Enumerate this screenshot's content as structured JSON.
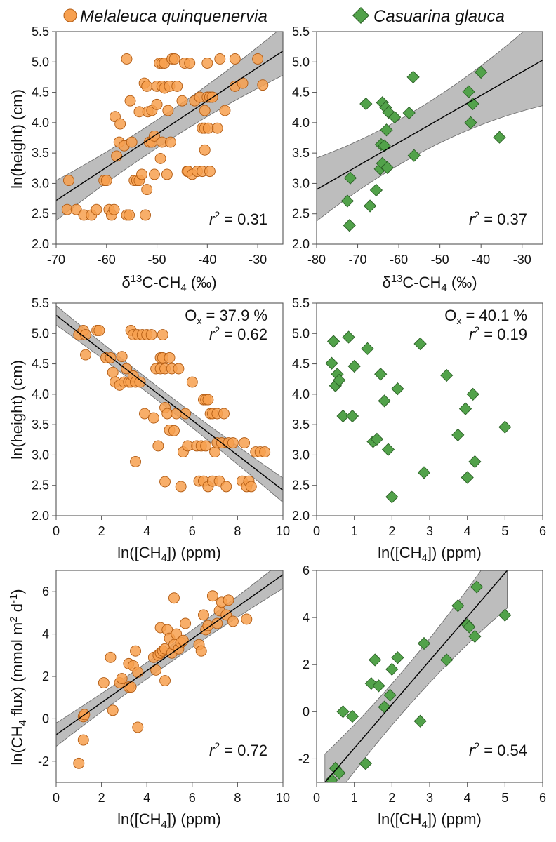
{
  "legend": [
    {
      "label": "Melaleuca quinquenervia",
      "marker": "circle",
      "color": "#f7a04f",
      "edge": "#b25b12"
    },
    {
      "label": "Casuarina glauca",
      "marker": "diamond",
      "color": "#52a24a",
      "edge": "#2a5f25"
    }
  ],
  "colors": {
    "band": "#bdbdbd",
    "fit_line": "#000000",
    "frame": "#555555"
  },
  "labels": {
    "y_height": "ln(height) (cm)",
    "y_flux": "ln(CH4 flux) (mmol m2 d-1)",
    "x_d13c": "δ13C-CH4 (‰)",
    "x_conc": "ln([CH4]) (ppm)"
  },
  "chart_data": [
    {
      "id": "A",
      "type": "scatter",
      "species": "Melaleuca quinquenervia",
      "marker": "circle",
      "xlim": [
        -70,
        -25
      ],
      "ylim": [
        2.0,
        5.5
      ],
      "xticks": [
        -70,
        -60,
        -50,
        -40,
        -30
      ],
      "yticks": [
        2.0,
        2.5,
        3.0,
        3.5,
        4.0,
        4.5,
        5.0,
        5.5
      ],
      "xlabel": "δ13C-CH4 (‰)",
      "ylabel": "ln(height) (cm)",
      "annotation": {
        "r2": "0.31",
        "ox": ""
      },
      "fit": {
        "x": [
          -70,
          -25
        ],
        "y": [
          2.72,
          5.18
        ],
        "band": [
          0.33,
          0.1,
          0.4
        ]
      },
      "points": [
        [
          -67.5,
          3.05
        ],
        [
          -67.8,
          2.57
        ],
        [
          -66,
          2.57
        ],
        [
          -64.5,
          2.48
        ],
        [
          -63,
          2.48
        ],
        [
          -62,
          2.57
        ],
        [
          -60.5,
          3.05
        ],
        [
          -60,
          3.05
        ],
        [
          -59.5,
          2.57
        ],
        [
          -59,
          2.48
        ],
        [
          -58.5,
          2.57
        ],
        [
          -58.3,
          4.1
        ],
        [
          -58,
          3.45
        ],
        [
          -57.5,
          3.68
        ],
        [
          -57.3,
          3.98
        ],
        [
          -56.5,
          3.62
        ],
        [
          -56,
          5.05
        ],
        [
          -56,
          2.48
        ],
        [
          -55.5,
          2.48
        ],
        [
          -55.3,
          4.36
        ],
        [
          -55,
          3.68
        ],
        [
          -54.5,
          3.05
        ],
        [
          -54,
          3.05
        ],
        [
          -53.5,
          4.18
        ],
        [
          -53.5,
          3.05
        ],
        [
          -53,
          3.15
        ],
        [
          -52.5,
          4.65
        ],
        [
          -52.3,
          2.48
        ],
        [
          -52,
          4.6
        ],
        [
          -52,
          2.9
        ],
        [
          -51.8,
          4.18
        ],
        [
          -51.5,
          3.68
        ],
        [
          -51,
          3.68
        ],
        [
          -51,
          4.2
        ],
        [
          -50.5,
          3.15
        ],
        [
          -50.5,
          3.78
        ],
        [
          -50,
          4.6
        ],
        [
          -50,
          4.3
        ],
        [
          -49.5,
          4.98
        ],
        [
          -49.3,
          3.41
        ],
        [
          -49,
          4.98
        ],
        [
          -49,
          4.6
        ],
        [
          -49,
          3.68
        ],
        [
          -48.5,
          4.98
        ],
        [
          -48.5,
          4.57
        ],
        [
          -48,
          3.15
        ],
        [
          -47.8,
          4.2
        ],
        [
          -47.5,
          4.6
        ],
        [
          -47.3,
          3.68
        ],
        [
          -47,
          5.05
        ],
        [
          -46.5,
          5.05
        ],
        [
          -46,
          4.6
        ],
        [
          -45,
          4.36
        ],
        [
          -44.5,
          4.98
        ],
        [
          -44,
          3.2
        ],
        [
          -43.8,
          3.2
        ],
        [
          -43.5,
          4.98
        ],
        [
          -43,
          3.15
        ],
        [
          -42.5,
          4.36
        ],
        [
          -42,
          3.2
        ],
        [
          -41.5,
          4.42
        ],
        [
          -41,
          3.2
        ],
        [
          -41,
          3.91
        ],
        [
          -40.5,
          3.91
        ],
        [
          -40.5,
          3.55
        ],
        [
          -40.5,
          4.2
        ],
        [
          -40,
          4.98
        ],
        [
          -40,
          4.42
        ],
        [
          -39.8,
          3.91
        ],
        [
          -39.5,
          3.2
        ],
        [
          -39.5,
          4.42
        ],
        [
          -39,
          4.42
        ],
        [
          -38,
          3.91
        ],
        [
          -37.5,
          5.05
        ],
        [
          -36.5,
          4.2
        ],
        [
          -34.5,
          4.6
        ],
        [
          -34.5,
          5.05
        ],
        [
          -33,
          4.65
        ],
        [
          -30,
          5.05
        ],
        [
          -29,
          4.62
        ]
      ]
    },
    {
      "id": "B",
      "type": "scatter",
      "species": "Casuarina glauca",
      "marker": "diamond",
      "xlim": [
        -80,
        -25
      ],
      "ylim": [
        2.0,
        5.5
      ],
      "xticks": [
        -80,
        -70,
        -60,
        -50,
        -40,
        -30
      ],
      "yticks": [
        2.0,
        2.5,
        3.0,
        3.5,
        4.0,
        4.5,
        5.0,
        5.5
      ],
      "xlabel": "δ13C-CH4 (‰)",
      "ylabel": "",
      "annotation": {
        "r2": "0.37",
        "ox": ""
      },
      "fit": {
        "x": [
          -80,
          -25
        ],
        "y": [
          2.9,
          5.03
        ],
        "band": [
          0.52,
          0.13,
          0.75
        ]
      },
      "points": [
        [
          -72,
          2.31
        ],
        [
          -72.5,
          2.71
        ],
        [
          -71.8,
          3.09
        ],
        [
          -68,
          4.31
        ],
        [
          -67,
          2.63
        ],
        [
          -65.5,
          2.89
        ],
        [
          -64.5,
          3.24
        ],
        [
          -64.3,
          3.64
        ],
        [
          -64,
          3.33
        ],
        [
          -64,
          4.33
        ],
        [
          -63.5,
          3.62
        ],
        [
          -63.2,
          4.25
        ],
        [
          -63,
          3.88
        ],
        [
          -62.8,
          3.26
        ],
        [
          -62.5,
          4.17
        ],
        [
          -61,
          4.09
        ],
        [
          -57.5,
          4.16
        ],
        [
          -56.5,
          4.75
        ],
        [
          -56.3,
          3.46
        ],
        [
          -43,
          4.51
        ],
        [
          -42.5,
          4.0
        ],
        [
          -42,
          4.31
        ],
        [
          -40,
          4.83
        ],
        [
          -35.5,
          3.76
        ]
      ]
    },
    {
      "id": "C",
      "type": "scatter",
      "species": "Melaleuca quinquenervia",
      "marker": "circle",
      "xlim": [
        0,
        10
      ],
      "ylim": [
        2.0,
        5.5
      ],
      "xticks": [
        0,
        2,
        4,
        6,
        8,
        10
      ],
      "yticks": [
        2.0,
        2.5,
        3.0,
        3.5,
        4.0,
        4.5,
        5.0,
        5.5
      ],
      "xlabel": "ln([CH4]) (ppm)",
      "ylabel": "ln(height) (cm)",
      "annotation": {
        "r2": "0.62",
        "ox": "37.9 %"
      },
      "fit": {
        "x": [
          0,
          10
        ],
        "y": [
          5.3,
          2.42
        ],
        "band": [
          0.16,
          0.05,
          0.2
        ]
      },
      "points": [
        [
          1.0,
          4.98
        ],
        [
          1.2,
          5.05
        ],
        [
          1.3,
          4.98
        ],
        [
          1.3,
          4.65
        ],
        [
          1.8,
          5.05
        ],
        [
          1.9,
          5.05
        ],
        [
          2.2,
          4.6
        ],
        [
          2.4,
          4.6
        ],
        [
          2.5,
          4.36
        ],
        [
          2.6,
          4.2
        ],
        [
          2.8,
          4.15
        ],
        [
          2.9,
          4.62
        ],
        [
          3.0,
          4.2
        ],
        [
          3.1,
          4.42
        ],
        [
          3.2,
          4.2
        ],
        [
          3.3,
          5.05
        ],
        [
          3.3,
          4.2
        ],
        [
          3.4,
          4.98
        ],
        [
          3.4,
          4.3
        ],
        [
          3.5,
          4.2
        ],
        [
          3.5,
          2.89
        ],
        [
          3.6,
          4.98
        ],
        [
          3.7,
          4.2
        ],
        [
          3.8,
          4.98
        ],
        [
          3.9,
          3.68
        ],
        [
          4.0,
          4.98
        ],
        [
          4.2,
          4.98
        ],
        [
          4.3,
          3.61
        ],
        [
          4.4,
          4.42
        ],
        [
          4.5,
          3.15
        ],
        [
          4.6,
          4.6
        ],
        [
          4.6,
          4.42
        ],
        [
          4.7,
          4.98
        ],
        [
          4.7,
          4.6
        ],
        [
          4.8,
          4.42
        ],
        [
          4.8,
          3.78
        ],
        [
          4.8,
          2.56
        ],
        [
          4.9,
          3.68
        ],
        [
          5.0,
          3.41
        ],
        [
          5.0,
          4.6
        ],
        [
          5.1,
          4.42
        ],
        [
          5.2,
          3.4
        ],
        [
          5.3,
          3.68
        ],
        [
          5.4,
          4.42
        ],
        [
          5.5,
          2.48
        ],
        [
          5.6,
          3.05
        ],
        [
          5.7,
          3.68
        ],
        [
          5.8,
          3.15
        ],
        [
          6.0,
          4.2
        ],
        [
          6.2,
          3.15
        ],
        [
          6.3,
          2.57
        ],
        [
          6.4,
          3.15
        ],
        [
          6.5,
          3.91
        ],
        [
          6.5,
          2.57
        ],
        [
          6.6,
          3.91
        ],
        [
          6.6,
          3.15
        ],
        [
          6.7,
          2.48
        ],
        [
          6.7,
          3.91
        ],
        [
          6.8,
          3.68
        ],
        [
          6.9,
          2.57
        ],
        [
          6.9,
          3.68
        ],
        [
          7.0,
          3.05
        ],
        [
          7.1,
          3.68
        ],
        [
          7.1,
          3.2
        ],
        [
          7.2,
          2.57
        ],
        [
          7.3,
          3.2
        ],
        [
          7.4,
          3.68
        ],
        [
          7.5,
          2.48
        ],
        [
          7.6,
          3.2
        ],
        [
          7.8,
          3.2
        ],
        [
          8.2,
          2.57
        ],
        [
          8.3,
          3.2
        ],
        [
          8.4,
          2.48
        ],
        [
          8.5,
          2.57
        ],
        [
          8.6,
          2.48
        ],
        [
          8.8,
          3.05
        ],
        [
          9.0,
          3.05
        ],
        [
          9.2,
          3.05
        ]
      ]
    },
    {
      "id": "D",
      "type": "scatter",
      "species": "Casuarina glauca",
      "marker": "diamond",
      "xlim": [
        0,
        6
      ],
      "ylim": [
        2.0,
        5.5
      ],
      "xticks": [
        0,
        1,
        2,
        3,
        4,
        5,
        6
      ],
      "yticks": [
        2.0,
        2.5,
        3.0,
        3.5,
        4.0,
        4.5,
        5.0,
        5.5
      ],
      "xlabel": "ln([CH4]) (ppm)",
      "ylabel": "",
      "annotation": {
        "r2": "0.19",
        "ox": "40.1 %"
      },
      "fit": null,
      "points": [
        [
          0.4,
          4.51
        ],
        [
          0.45,
          4.87
        ],
        [
          0.5,
          4.14
        ],
        [
          0.55,
          4.33
        ],
        [
          0.6,
          4.23
        ],
        [
          0.7,
          3.64
        ],
        [
          0.85,
          4.94
        ],
        [
          0.95,
          3.64
        ],
        [
          1.0,
          4.46
        ],
        [
          1.35,
          4.75
        ],
        [
          1.5,
          3.22
        ],
        [
          1.6,
          3.26
        ],
        [
          1.7,
          4.33
        ],
        [
          1.8,
          3.89
        ],
        [
          1.9,
          3.09
        ],
        [
          2.0,
          2.31
        ],
        [
          2.15,
          4.09
        ],
        [
          2.75,
          4.83
        ],
        [
          2.85,
          2.71
        ],
        [
          3.45,
          4.31
        ],
        [
          3.75,
          3.33
        ],
        [
          3.95,
          3.76
        ],
        [
          4.0,
          2.63
        ],
        [
          4.15,
          4.0
        ],
        [
          4.2,
          2.89
        ],
        [
          5.0,
          3.46
        ]
      ]
    },
    {
      "id": "E",
      "type": "scatter",
      "species": "Melaleuca quinquenervia",
      "marker": "circle",
      "xlim": [
        0,
        10
      ],
      "ylim": [
        -3,
        7
      ],
      "xticks": [
        0,
        2,
        4,
        6,
        8,
        10
      ],
      "yticks": [
        -2,
        0,
        2,
        4,
        6
      ],
      "xlabel": "ln([CH4]) (ppm)",
      "ylabel": "ln(CH4 flux) (mmol m2 d-1)",
      "annotation": {
        "r2": "0.72",
        "ox": ""
      },
      "fit": {
        "x": [
          0,
          10
        ],
        "y": [
          -0.75,
          6.8
        ],
        "band": [
          0.55,
          0.18,
          0.65
        ]
      },
      "points": [
        [
          1.0,
          -2.1
        ],
        [
          1.2,
          -1.0
        ],
        [
          1.2,
          0.1
        ],
        [
          1.25,
          0.2
        ],
        [
          2.1,
          1.7
        ],
        [
          2.4,
          2.9
        ],
        [
          2.5,
          0.4
        ],
        [
          2.8,
          1.7
        ],
        [
          2.9,
          1.9
        ],
        [
          3.2,
          1.5
        ],
        [
          3.2,
          2.6
        ],
        [
          3.3,
          1.5
        ],
        [
          3.4,
          2.5
        ],
        [
          3.5,
          3.2
        ],
        [
          3.6,
          2.2
        ],
        [
          3.6,
          -0.4
        ],
        [
          4.3,
          2.9
        ],
        [
          4.4,
          2.3
        ],
        [
          4.5,
          3.0
        ],
        [
          4.6,
          3.1
        ],
        [
          4.6,
          4.3
        ],
        [
          4.7,
          3.2
        ],
        [
          4.8,
          1.8
        ],
        [
          4.8,
          3.3
        ],
        [
          4.9,
          4.2
        ],
        [
          5.0,
          3.8
        ],
        [
          5.1,
          3.1
        ],
        [
          5.2,
          3.5
        ],
        [
          5.2,
          5.7
        ],
        [
          5.3,
          4.0
        ],
        [
          5.4,
          3.3
        ],
        [
          5.5,
          3.6
        ],
        [
          5.6,
          3.7
        ],
        [
          5.7,
          4.5
        ],
        [
          6.3,
          3.5
        ],
        [
          6.4,
          3.2
        ],
        [
          6.5,
          4.9
        ],
        [
          6.6,
          4.2
        ],
        [
          6.7,
          4.4
        ],
        [
          6.9,
          5.8
        ],
        [
          7.1,
          4.5
        ],
        [
          7.2,
          5.1
        ],
        [
          7.3,
          5.5
        ],
        [
          7.5,
          4.9
        ],
        [
          7.6,
          5.6
        ],
        [
          7.8,
          4.6
        ],
        [
          8.4,
          4.7
        ]
      ]
    },
    {
      "id": "F",
      "type": "scatter",
      "species": "Casuarina glauca",
      "marker": "diamond",
      "xlim": [
        0,
        6
      ],
      "ylim": [
        -3,
        6
      ],
      "xticks": [
        0,
        1,
        2,
        3,
        4,
        5,
        6
      ],
      "yticks": [
        -2,
        0,
        2,
        4,
        6
      ],
      "xlabel": "ln([CH4]) (ppm)",
      "ylabel": "",
      "annotation": {
        "r2": "0.54",
        "ox": ""
      },
      "fit": {
        "x": [
          0.22,
          5.06
        ],
        "y": [
          -3.0,
          6.0
        ],
        "band": [
          1.2,
          0.4,
          1.6
        ]
      },
      "points": [
        [
          0.4,
          -2.9
        ],
        [
          0.5,
          -2.4
        ],
        [
          0.6,
          -2.6
        ],
        [
          0.7,
          0.0
        ],
        [
          0.95,
          -0.2
        ],
        [
          1.3,
          -2.2
        ],
        [
          1.45,
          1.2
        ],
        [
          1.55,
          2.2
        ],
        [
          1.65,
          1.1
        ],
        [
          1.8,
          0.2
        ],
        [
          1.95,
          0.7
        ],
        [
          2.0,
          1.8
        ],
        [
          2.15,
          2.3
        ],
        [
          2.75,
          -0.4
        ],
        [
          2.85,
          2.9
        ],
        [
          3.45,
          2.2
        ],
        [
          3.75,
          4.5
        ],
        [
          4.0,
          3.7
        ],
        [
          4.05,
          3.6
        ],
        [
          4.2,
          3.2
        ],
        [
          4.25,
          5.3
        ],
        [
          5.0,
          4.1
        ]
      ]
    }
  ]
}
